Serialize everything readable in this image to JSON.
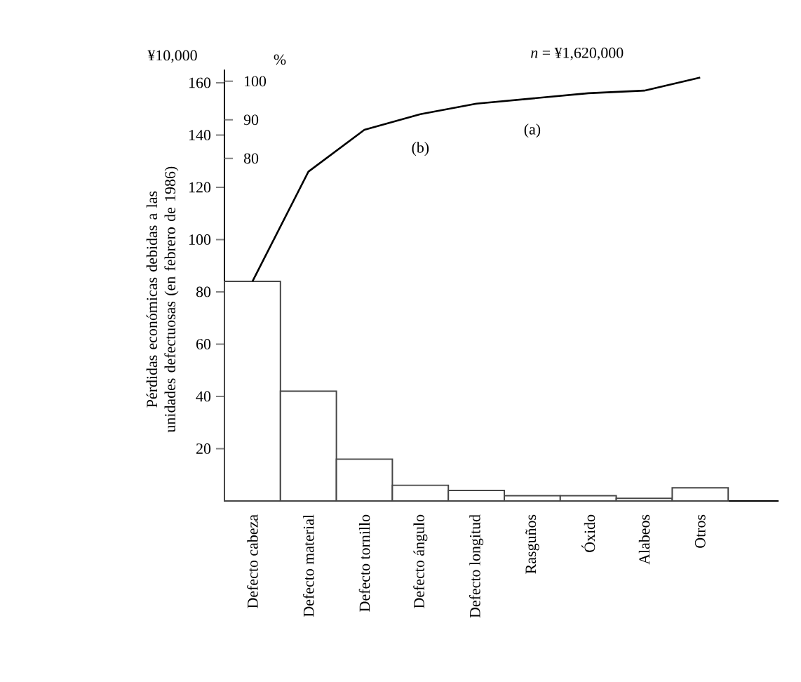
{
  "chart_data": {
    "type": "bar",
    "ylabel": "Pérdidas económicas debidas a las unidades defectuosas (en febrero de 1986)",
    "y2label": "%",
    "categories": [
      "Defecto cabeza",
      "Defecto material",
      "Defecto tornillo",
      "Defecto ángulo",
      "Defecto longitud",
      "Rasguños",
      "Óxido",
      "Alabeos",
      "Otros"
    ],
    "series": [
      {
        "color": "#ffffff",
        "values": [
          84,
          42,
          16,
          6,
          4,
          2,
          2,
          1,
          5
        ]
      },
      {
        "type": "line",
        "color": "#000000",
        "values": [
          84,
          126,
          142,
          148,
          152,
          154,
          156,
          157,
          162
        ]
      }
    ],
    "ylim": [
      0,
      165
    ],
    "yticks": [
      20,
      40,
      60,
      80,
      100,
      120,
      140,
      160
    ],
    "y2lim": [
      -8.8,
      103
    ],
    "y2ticks": [
      80,
      90,
      100
    ],
    "annotations": [
      "¥10,000",
      "*n* = ¥1,620,000",
      "(a)",
      "(b)"
    ]
  }
}
